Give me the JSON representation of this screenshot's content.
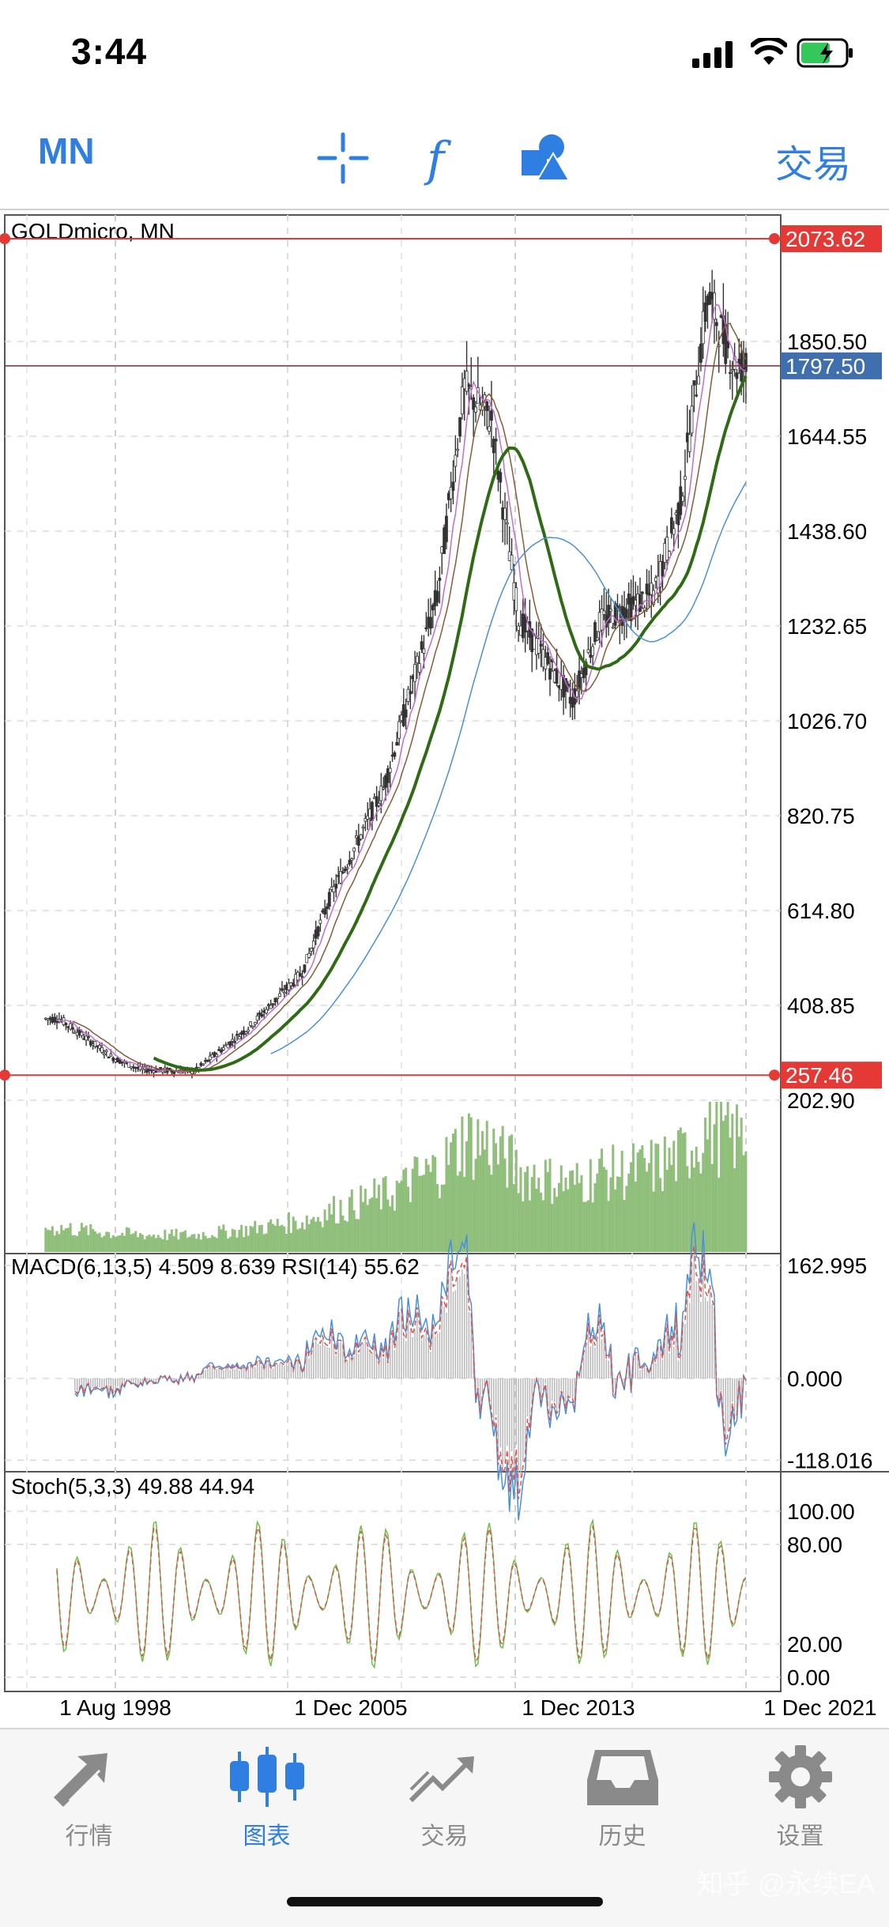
{
  "status_bar": {
    "time": "3:44"
  },
  "toolbar": {
    "period": "MN",
    "trade_label": "交易",
    "icons": [
      "crosshair-icon",
      "function-icon",
      "objects-icon"
    ]
  },
  "chart": {
    "symbol_title": "GOLDmicro, MN",
    "price_axis": [
      "1850.50",
      "1644.55",
      "1438.60",
      "1232.65",
      "1026.70",
      "820.75",
      "614.80",
      "408.85",
      "202.90"
    ],
    "current_price": "1797.50",
    "high_line_price": "2073.62",
    "low_line_price": "257.46",
    "macd_label": "MACD(6,13,5) 4.509 8.639 RSI(14) 55.62",
    "macd_axis": [
      "162.995",
      "0.000",
      "-118.016"
    ],
    "stoch_label": "Stoch(5,3,3) 49.88 44.94",
    "stoch_axis": [
      "100.00",
      "80.00",
      "20.00",
      "0.00"
    ],
    "time_axis": [
      "1 Aug 1998",
      "1 Dec 2005",
      "1 Dec 2013",
      "1 Dec 2021"
    ],
    "colors": {
      "high_low_line": "#e53935",
      "current_price_bg": "#3f6fae",
      "ma_thick": "#2f6b14",
      "ma_blue": "#4a90d9",
      "volume": "#8fbf7a"
    }
  },
  "chart_data": {
    "type": "candlestick",
    "title": "GOLDmicro, MN",
    "x_ticks": [
      "1 Aug 1998",
      "1 Dec 2005",
      "1 Dec 2013",
      "1 Dec 2021"
    ],
    "approx_close": [
      {
        "date": "1996",
        "value": 380
      },
      {
        "date": "1998",
        "value": 295
      },
      {
        "date": "1999",
        "value": 270
      },
      {
        "date": "2001",
        "value": 265
      },
      {
        "date": "2003",
        "value": 360
      },
      {
        "date": "2005",
        "value": 480
      },
      {
        "date": "2006",
        "value": 640
      },
      {
        "date": "2008",
        "value": 880
      },
      {
        "date": "2010",
        "value": 1300
      },
      {
        "date": "2011",
        "value": 1750
      },
      {
        "date": "2012",
        "value": 1680
      },
      {
        "date": "2013",
        "value": 1250
      },
      {
        "date": "2015",
        "value": 1070
      },
      {
        "date": "2016",
        "value": 1240
      },
      {
        "date": "2018",
        "value": 1300
      },
      {
        "date": "2019",
        "value": 1500
      },
      {
        "date": "2020",
        "value": 1950
      },
      {
        "date": "2021",
        "value": 1797.5
      }
    ],
    "ylim": [
      202.9,
      2073.62
    ]
  },
  "tabs": [
    {
      "label": "行情",
      "icon": "quotes-arrow-icon"
    },
    {
      "label": "图表",
      "icon": "candles-icon",
      "active": true
    },
    {
      "label": "交易",
      "icon": "trade-trend-icon"
    },
    {
      "label": "历史",
      "icon": "history-tray-icon"
    },
    {
      "label": "设置",
      "icon": "gear-icon"
    }
  ],
  "watermark": "知乎 @永续EA"
}
